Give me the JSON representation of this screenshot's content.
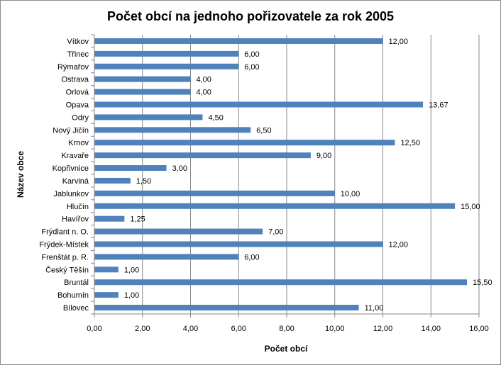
{
  "chart_data": {
    "type": "bar",
    "orientation": "horizontal",
    "title": "Počet obcí na jednoho pořizovatele za rok 2005",
    "xlabel": "Počet obcí",
    "ylabel": "Název obce",
    "categories": [
      "Vítkov",
      "Třinec",
      "Rýmařov",
      "Ostrava",
      "Orlová",
      "Opava",
      "Odry",
      "Nový Jičín",
      "Krnov",
      "Kravaře",
      "Kopřivnice",
      "Karviná",
      "Jablunkov",
      "Hlučín",
      "Havířov",
      "Frýdlant n. O.",
      "Frýdek-Místek",
      "Frenštát p. R.",
      "Český Těšín",
      "Bruntál",
      "Bohumín",
      "Bílovec"
    ],
    "values": [
      12.0,
      6.0,
      6.0,
      4.0,
      4.0,
      13.67,
      4.5,
      6.5,
      12.5,
      9.0,
      3.0,
      1.5,
      10.0,
      15.0,
      1.25,
      7.0,
      12.0,
      6.0,
      1.0,
      15.5,
      1.0,
      11.0
    ],
    "value_labels": [
      "12,00",
      "6,00",
      "6,00",
      "4,00",
      "4,00",
      "13,67",
      "4,50",
      "6,50",
      "12,50",
      "9,00",
      "3,00",
      "1,50",
      "10,00",
      "15,00",
      "1,25",
      "7,00",
      "12,00",
      "6,00",
      "1,00",
      "15,50",
      "1,00",
      "11,00"
    ],
    "xlim": [
      0,
      16
    ],
    "xticks": [
      0,
      2,
      4,
      6,
      8,
      10,
      12,
      14,
      16
    ],
    "xtick_labels": [
      "0,00",
      "2,00",
      "4,00",
      "6,00",
      "8,00",
      "10,00",
      "12,00",
      "14,00",
      "16,00"
    ],
    "grid": "vertical",
    "legend": "none",
    "bar_color": "#4f81bd",
    "grid_color": "#878787"
  }
}
